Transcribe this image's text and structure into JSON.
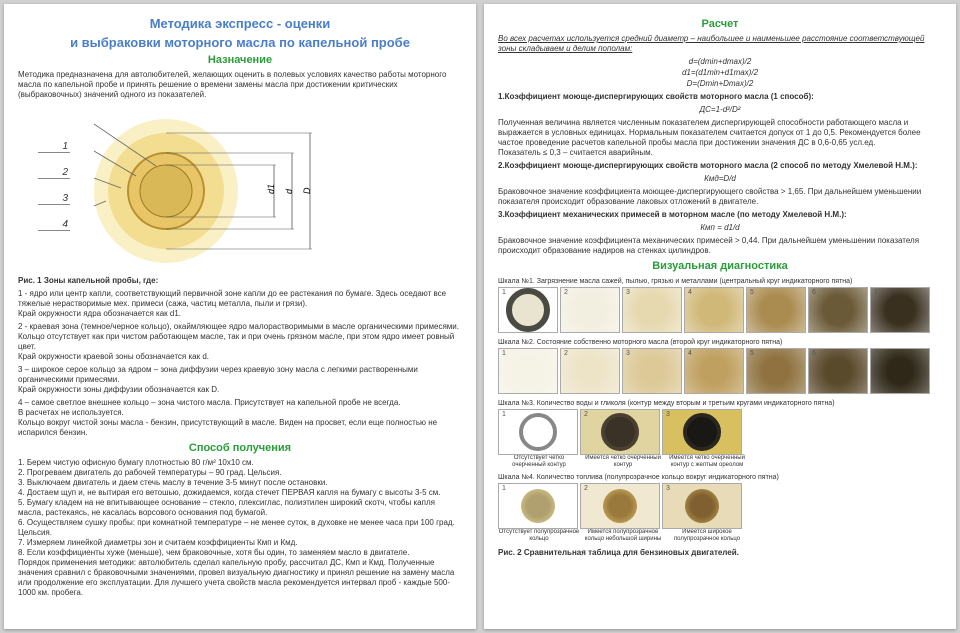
{
  "left": {
    "title1": "Методика экспресс - оценки",
    "title2": "и выбраковки моторного масла по капельной пробе",
    "sec_purpose": "Назначение",
    "purpose_text": "Методика предназначена для автолюбителей, желающих оценить в полевых условиях качество работы моторного масла по капельной пробе и принять решение о времени замены масла при достижении критических (выбраковочных) значений одного из показателей.",
    "diagram_labels": [
      "1",
      "2",
      "3",
      "4"
    ],
    "dim_labels": [
      "d1",
      "d",
      "D"
    ],
    "fig1": "Рис. 1 Зоны капельной пробы, где:",
    "z1": "1 - ядро или центр капли, соответствующий первичной зоне капли до ее растекания по бумаге. Здесь оседают все тяжелые нерастворимые мех. примеси (сажа, частиц металла, пыли и грязи).\nКрай окружности ядра обозначается как d1.",
    "z2": "2 - краевая зона (темное/черное кольцо), окаймляющее ядро малорастворимыми в масле органическими примесями. Кольцо отсутствует как при чистом работающем масле, так и при очень грязном масле, при этом ядро имеет ровный цвет.\nКрай окружности краевой зоны обозначается как d.",
    "z3": "3 – широкое серое кольцо за ядром – зона диффузии через краевую зону масла с легкими растворенными органическими примесями.\nКрай окружности зоны диффузии обозначается как D.",
    "z4": "4 – самое светлое внешнее кольцо – зона чистого масла. Присутствует на капельной пробе не всегда.\nВ расчетах не используется.\nКольцо вокруг чистой зоны масла - бензин, присутствующий в масле. Виден на просвет, если еще полностью не испарился бензин.",
    "sec_method": "Способ получения",
    "method": "1. Берем чистую офисную бумагу плотностью 80 г/м² 10х10 см.\n2. Прогреваем двигатель до рабочей температуры – 90 град. Цельсия.\n3. Выключаем двигатель и даем стечь маслу в течение 3-5 минут после остановки.\n4. Достаем щуп и, не вытирая его ветошью, дожидаемся, когда стечет ПЕРВАЯ капля на бумагу с высоты 3-5 см.\n5. Бумагу кладем на не впитывающее основание – стекло, плексиглас, полиэтилен широкий скотч, чтобы капля масла, растекаясь, не касалась ворсового основания под бумагой.\n6. Осуществляем сушку пробы: при комнатной температуре – не менее суток, в духовке не менее часа при 100 град. Цельсия.\n7. Измеряем линейкой диаметры зон и считаем коэффициенты Кмп и Кмд.\n8. Если коэффициенты хуже (меньше), чем браковочные, хотя бы один, то заменяем масло в двигателе.\n    Порядок применения методики: автолюбитель сделал капельную пробу, рассчитал ДС, Кмп и Кмд. Полученные значения сравнил с браковочными значениями, провел визуальную диагностику и принял решение на замену масла или продолжение его эксплуатации. Для лучшего учета свойств масла рекомендуется интервал проб - каждые 500-1000 км. пробега."
  },
  "right": {
    "sec_calc": "Расчет",
    "calc_note": "Во всех расчетах используется средний диаметр – наибольшее и наименьшее расстояние соответствующей зоны складываем и делим пополам:",
    "f1": "d=(dmin+dmax)/2",
    "f2": "d1=(d1min+d1max)/2",
    "f3": "D=(Dmin+Dmax)/2",
    "k1_title": "1.Коэффициент моюще-диспергирующих свойств моторного масла (1 способ):",
    "k1_formula": "ДС=1-d²/D²",
    "k1_text": "Полученная величина является численным показателем диспергирующей способности работающего масла и выражается в условных единицах. Нормальным показателем считается допуск от 1 до 0,5. Рекомендуется более частое проведение расчетов капельной пробы масла при достижении значения ДС в 0,6-0,65 усл.ед.\nПоказатель ≤ 0,3 – считается аварийным.",
    "k2_title": "2.Коэффициент моюще-диспергирующих свойств моторного масла (2 способ по методу Хмелевой Н.М.):",
    "k2_formula": "Кмд=D/d",
    "k2_text": "Браковочное значение коэффициента моющее-диспергирующего свойства > 1,65. При дальнейшем уменьшении показателя происходит образование лаковых отложений  в двигателе.",
    "k3_title": "3.Коэффициент механических примесей в моторном масле (по методу Хмелевой Н.М.):",
    "k3_formula": "Кмп = d1/d",
    "k3_text": "Браковочное значение коэффициента механических примесей > 0,44. При дальнейшем уменьшении показателя происходит образование надиров на стенках цилиндров.",
    "sec_visual": "Визуальная диагностика",
    "scale1_label": "Шкала №1. Загрязнение масла сажей, пылью, грязью и металлами (центральный круг индикаторного пятна)",
    "scale2_label": "Шкала №2. Состояние собственно моторного масла (второй круг индикаторного пятна)",
    "scale3_label": "Шкала №3. Количество воды и гликоля (контур между вторым и третьим кругами индикаторного пятна)",
    "scale3_caps": [
      "Отсутствует четко очерченный контур",
      "Имеется четко очерченный контур",
      "Имеется четко очерченный контур с желтым ореолом"
    ],
    "scale4_label": "Шкала №4. Количество топлива (полупрозрачное кольцо вокруг индикаторного пятна)",
    "scale4_caps": [
      "Отсутствует полупрозрачное кольцо",
      "Имеется полупрозрачное кольцо небольшой ширины",
      "Имеется широкое полупрозрачное кольцо"
    ],
    "fig2": "Рис. 2 Сравнительная таблица для бензиновых двигателей.",
    "palette1": [
      "#4a4a42",
      "#f2eee0",
      "#e6d9b0",
      "#d0b878",
      "#aa8b50",
      "#6b5a38",
      "#3a3020"
    ],
    "palette2": [
      "#f5f2e6",
      "#ede4c8",
      "#ddc998",
      "#c0a060",
      "#8f7240",
      "#5a4a2c",
      "#2f2818"
    ],
    "scale3_imgs": [
      {
        "outer": "#ffffff",
        "ring": "#888",
        "core": "#fff"
      },
      {
        "outer": "#e0d4a0",
        "ring": "#4a4030",
        "core": "#3a3226"
      },
      {
        "outer": "#d8c060",
        "ring": "#2a2620",
        "core": "#1a1814"
      }
    ],
    "scale4_imgs": [
      {
        "halo": "#fff",
        "ring": "#c8b880",
        "core": "#b0a070"
      },
      {
        "halo": "#f0e8d0",
        "ring": "#b89850",
        "core": "#9a7a3c"
      },
      {
        "halo": "#e8dcb8",
        "ring": "#a08040",
        "core": "#806030"
      }
    ]
  }
}
